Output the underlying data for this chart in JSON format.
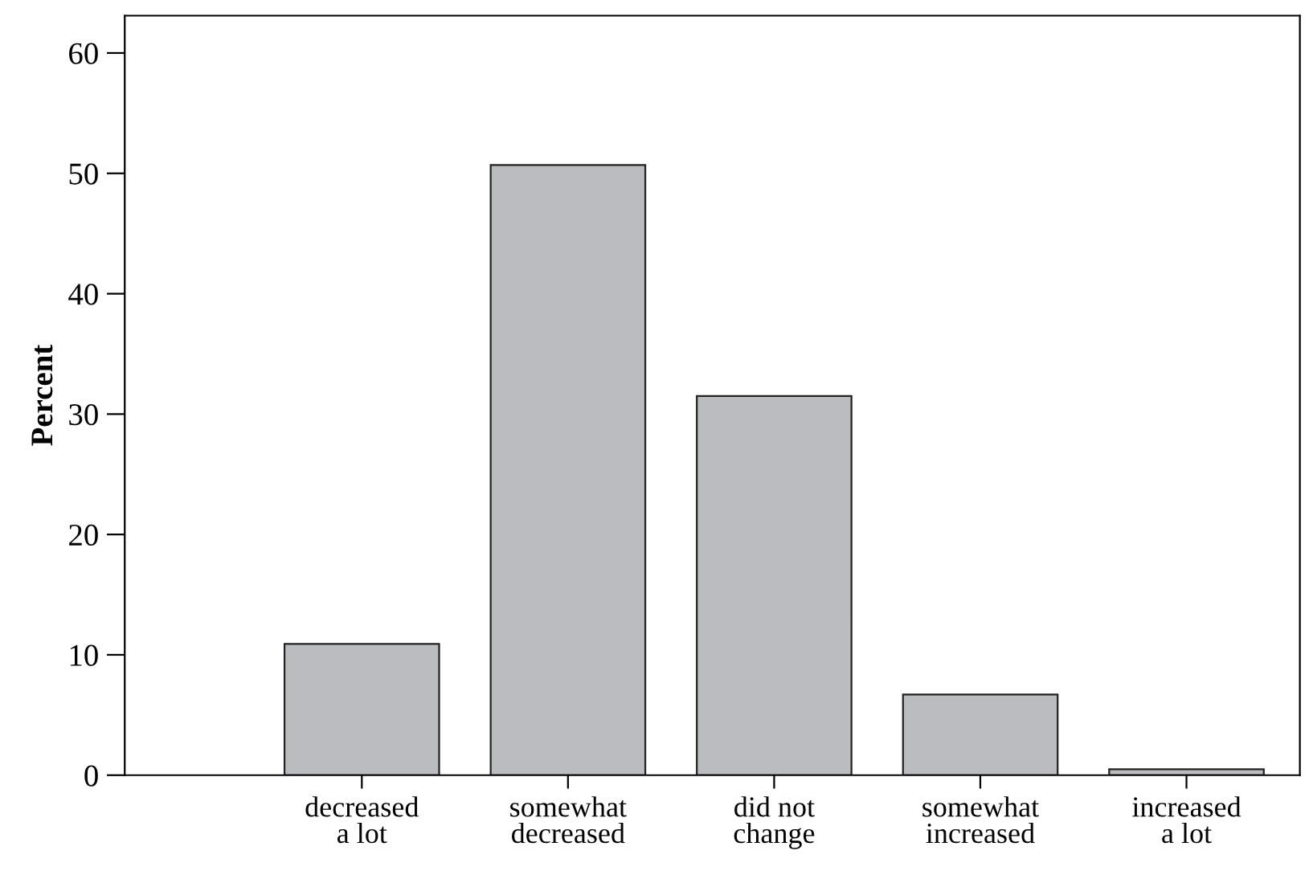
{
  "chart_data": {
    "type": "bar",
    "ylabel": "Percent",
    "categories": [
      "decreased\na lot",
      "somewhat\ndecreased",
      "did not\nchange",
      "somewhat\nincreased",
      "increased\na lot"
    ],
    "values": [
      10.9,
      50.7,
      31.5,
      6.7,
      0.5
    ],
    "color": "#bbbcc0",
    "ylim": [
      0,
      63.1
    ],
    "yticks": [
      0,
      10,
      20,
      30,
      40,
      50,
      60
    ],
    "grid": false,
    "legend": false
  }
}
